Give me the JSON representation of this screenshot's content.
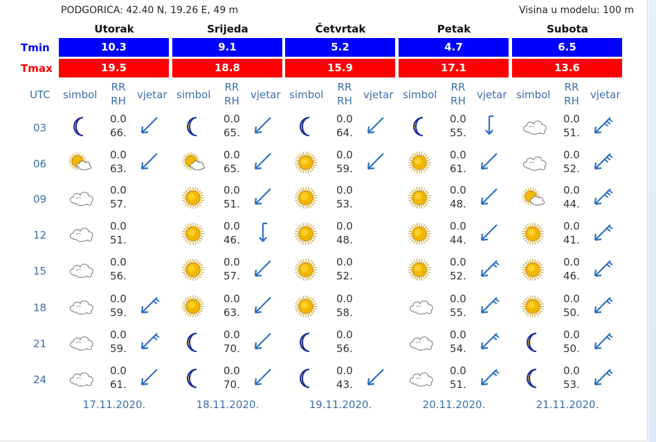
{
  "header": {
    "location": "PODGORICA: 42.40 N, 19.26 E, 49 m",
    "model_height": "Visina u modelu: 100 m"
  },
  "labels": {
    "tmin": "Tmin",
    "tmax": "Tmax",
    "utc": "UTC",
    "simbol": "simbol",
    "rr": "RR",
    "rh": "RH",
    "vjetar": "vjetar"
  },
  "colors": {
    "tmin_bg": "#0000ff",
    "tmax_bg": "#ff0000",
    "label_blue": "#3a6ea8",
    "wind_arrow": "#2a6fc0"
  },
  "days": [
    {
      "name": "Utorak",
      "tmin": "10.3",
      "tmax": "19.5",
      "date": "17.11.2020.",
      "rows": [
        {
          "symbol": "moon-icon",
          "rr": "0.0",
          "rh": "66.",
          "wind": "arrow-sw-icon"
        },
        {
          "symbol": "sun-cloud-icon",
          "rr": "0.0",
          "rh": "63.",
          "wind": "arrow-sw-icon"
        },
        {
          "symbol": "cloud-icon",
          "rr": "0.0",
          "rh": "57.",
          "wind": ""
        },
        {
          "symbol": "cloud-icon",
          "rr": "0.0",
          "rh": "51.",
          "wind": ""
        },
        {
          "symbol": "cloud-icon",
          "rr": "0.0",
          "rh": "56.",
          "wind": ""
        },
        {
          "symbol": "cloud-icon",
          "rr": "0.0",
          "rh": "59.",
          "wind": "barb-sw-icon"
        },
        {
          "symbol": "cloud-icon",
          "rr": "0.0",
          "rh": "59.",
          "wind": "barb-sw-icon"
        },
        {
          "symbol": "cloud-icon",
          "rr": "0.0",
          "rh": "61.",
          "wind": "arrow-sw-icon"
        }
      ]
    },
    {
      "name": "Srijeda",
      "tmin": "9.1",
      "tmax": "18.8",
      "date": "18.11.2020.",
      "rows": [
        {
          "symbol": "moon-icon",
          "rr": "0.0",
          "rh": "65.",
          "wind": "arrow-sw-icon"
        },
        {
          "symbol": "sun-cloud-icon",
          "rr": "0.0",
          "rh": "65.",
          "wind": "arrow-sw-icon"
        },
        {
          "symbol": "sun-icon",
          "rr": "0.0",
          "rh": "51.",
          "wind": "arrow-sw-icon"
        },
        {
          "symbol": "sun-icon",
          "rr": "0.0",
          "rh": "46.",
          "wind": "arrow-s-icon"
        },
        {
          "symbol": "sun-icon",
          "rr": "0.0",
          "rh": "57.",
          "wind": "arrow-sw-icon"
        },
        {
          "symbol": "sun-icon",
          "rr": "0.0",
          "rh": "63.",
          "wind": "arrow-sw-icon"
        },
        {
          "symbol": "moon-icon",
          "rr": "0.0",
          "rh": "70.",
          "wind": "arrow-sw-icon"
        },
        {
          "symbol": "moon-icon",
          "rr": "0.0",
          "rh": "70.",
          "wind": "arrow-sw-icon"
        }
      ]
    },
    {
      "name": "Četvrtak",
      "tmin": "5.2",
      "tmax": "15.9",
      "date": "19.11.2020.",
      "rows": [
        {
          "symbol": "moon-icon",
          "rr": "0.0",
          "rh": "64.",
          "wind": "arrow-sw-icon"
        },
        {
          "symbol": "sun-icon",
          "rr": "0.0",
          "rh": "59.",
          "wind": "arrow-sw-icon"
        },
        {
          "symbol": "sun-icon",
          "rr": "0.0",
          "rh": "53.",
          "wind": ""
        },
        {
          "symbol": "sun-icon",
          "rr": "0.0",
          "rh": "48.",
          "wind": ""
        },
        {
          "symbol": "sun-icon",
          "rr": "0.0",
          "rh": "52.",
          "wind": ""
        },
        {
          "symbol": "sun-icon",
          "rr": "0.0",
          "rh": "58.",
          "wind": ""
        },
        {
          "symbol": "moon-icon",
          "rr": "0.0",
          "rh": "56.",
          "wind": ""
        },
        {
          "symbol": "moon-icon",
          "rr": "0.0",
          "rh": "43.",
          "wind": "arrow-sw-icon"
        }
      ]
    },
    {
      "name": "Petak",
      "tmin": "4.7",
      "tmax": "17.1",
      "date": "20.11.2020.",
      "rows": [
        {
          "symbol": "moon-icon",
          "rr": "0.0",
          "rh": "55.",
          "wind": "arrow-s-icon"
        },
        {
          "symbol": "sun-icon",
          "rr": "0.0",
          "rh": "61.",
          "wind": "arrow-sw-icon"
        },
        {
          "symbol": "sun-icon",
          "rr": "0.0",
          "rh": "48.",
          "wind": "arrow-sw-icon"
        },
        {
          "symbol": "sun-icon",
          "rr": "0.0",
          "rh": "44.",
          "wind": "arrow-sw-icon"
        },
        {
          "symbol": "sun-icon",
          "rr": "0.0",
          "rh": "52.",
          "wind": "barb-sw-icon"
        },
        {
          "symbol": "cloud-icon",
          "rr": "0.0",
          "rh": "55.",
          "wind": "barb-sw-icon"
        },
        {
          "symbol": "cloud-icon",
          "rr": "0.0",
          "rh": "54.",
          "wind": "barb-sw-icon"
        },
        {
          "symbol": "cloud-icon",
          "rr": "0.0",
          "rh": "51.",
          "wind": "barb-sw-icon"
        }
      ]
    },
    {
      "name": "Subota",
      "tmin": "6.5",
      "tmax": "13.6",
      "date": "21.11.2020.",
      "rows": [
        {
          "symbol": "cloud-icon",
          "rr": "0.0",
          "rh": "51.",
          "wind": "barb2-sw-icon"
        },
        {
          "symbol": "cloud-icon",
          "rr": "0.0",
          "rh": "52.",
          "wind": "barb2-sw-icon"
        },
        {
          "symbol": "sun-cloud-icon",
          "rr": "0.0",
          "rh": "44.",
          "wind": "barb2-sw-icon"
        },
        {
          "symbol": "sun-icon",
          "rr": "0.0",
          "rh": "41.",
          "wind": "barb-sw-icon"
        },
        {
          "symbol": "sun-icon",
          "rr": "0.0",
          "rh": "46.",
          "wind": "barb-sw-icon"
        },
        {
          "symbol": "sun-icon",
          "rr": "0.0",
          "rh": "50.",
          "wind": "barb-sw-icon"
        },
        {
          "symbol": "moon-icon",
          "rr": "0.0",
          "rh": "50.",
          "wind": "barb-sw-icon"
        },
        {
          "symbol": "moon-icon",
          "rr": "0.0",
          "rh": "53.",
          "wind": "barb-sw-icon"
        }
      ]
    }
  ],
  "utc_hours": [
    "03",
    "06",
    "09",
    "12",
    "15",
    "18",
    "21",
    "24"
  ]
}
